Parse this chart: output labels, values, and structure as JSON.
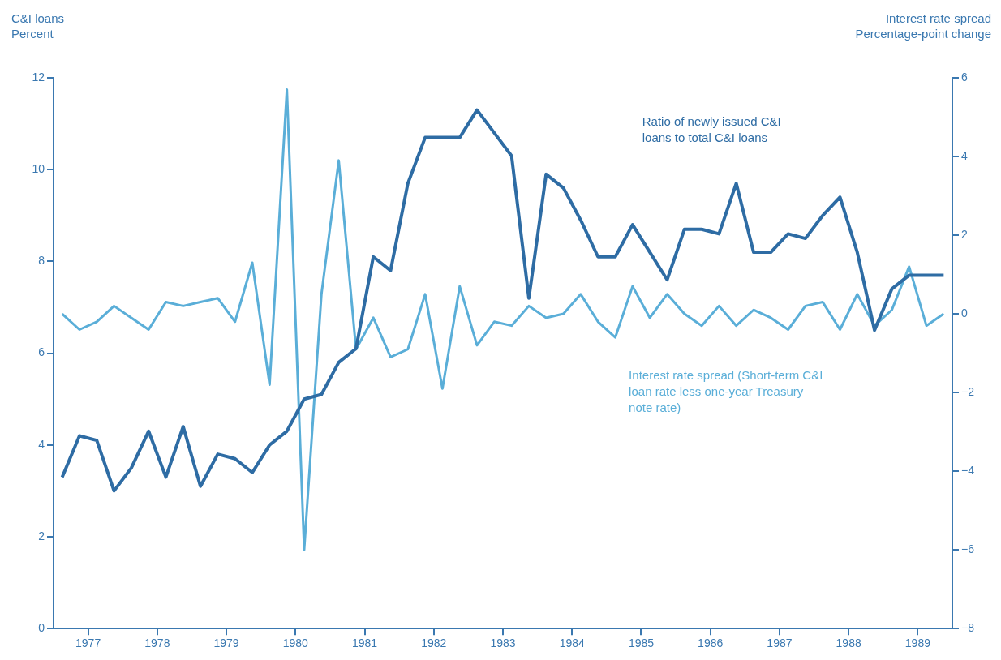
{
  "chart_data": {
    "type": "line",
    "ylabel": "C&I loans\nPercent",
    "y2label": "Interest rate spread\nPercentage-point change",
    "x": [
      1977.125,
      1977.375,
      1977.625,
      1977.875,
      1978.125,
      1978.375,
      1978.625,
      1978.875,
      1979.125,
      1979.375,
      1979.625,
      1979.875,
      1980.125,
      1980.375,
      1980.625,
      1980.875,
      1981.125,
      1981.375,
      1981.625,
      1981.875,
      1982.125,
      1982.375,
      1982.625,
      1982.875,
      1983.125,
      1983.375,
      1983.625,
      1983.875,
      1984.125,
      1984.375,
      1984.625,
      1984.875,
      1985.125,
      1985.375,
      1985.625,
      1985.875,
      1986.125,
      1986.375,
      1986.625,
      1986.875,
      1987.125,
      1987.375,
      1987.625,
      1987.875,
      1988.125,
      1988.375,
      1988.625,
      1988.875,
      1989.125,
      1989.375,
      1989.625,
      1989.875
    ],
    "series": [
      {
        "name": "Ratio of newly issued C&I loans to total C&I loans",
        "color": "#2e6ca4",
        "values": [
          3.3,
          4.2,
          4.1,
          3.0,
          3.5,
          4.3,
          3.3,
          4.4,
          3.1,
          3.8,
          3.7,
          3.4,
          4.0,
          4.3,
          5.0,
          5.1,
          5.8,
          6.1,
          8.1,
          7.8,
          9.7,
          10.7,
          10.7,
          10.7,
          11.3,
          10.8,
          10.3,
          7.2,
          9.9,
          9.6,
          8.9,
          8.1,
          8.1,
          8.8,
          8.2,
          7.6,
          8.7,
          8.7,
          8.6,
          9.7,
          8.2,
          8.2,
          8.6,
          8.5,
          9.0,
          9.4,
          8.2,
          6.5,
          7.4,
          7.7,
          7.7,
          7.7
        ]
      },
      {
        "name": "Interest rate spread (Short-term C&I loan rate less one-year Treasury note rate)",
        "color": "#5aaed8",
        "axis": "y2",
        "values": [
          0.0,
          -0.4,
          -0.2,
          0.2,
          -0.1,
          -0.4,
          0.3,
          0.2,
          0.3,
          0.4,
          -0.2,
          1.3,
          -1.8,
          5.7,
          -6.0,
          0.5,
          3.9,
          -0.9,
          -0.1,
          -1.1,
          -0.9,
          0.5,
          -1.9,
          0.7,
          -0.8,
          -0.2,
          -0.3,
          0.2,
          -0.1,
          0.0,
          0.5,
          -0.2,
          -0.6,
          0.7,
          -0.1,
          0.5,
          0.0,
          -0.3,
          0.2,
          -0.3,
          0.1,
          -0.1,
          -0.4,
          0.2,
          0.3,
          -0.4,
          0.5,
          -0.3,
          0.1,
          1.2,
          -0.3,
          0.0
        ]
      }
    ],
    "xlim": [
      1977,
      1990
    ],
    "xticks": [
      {
        "value": 1977.5,
        "label": "1977"
      },
      {
        "value": 1978.5,
        "label": "1978"
      },
      {
        "value": 1979.5,
        "label": "1979"
      },
      {
        "value": 1980.5,
        "label": "1980"
      },
      {
        "value": 1981.5,
        "label": "1981"
      },
      {
        "value": 1982.5,
        "label": "1982"
      },
      {
        "value": 1983.5,
        "label": "1983"
      },
      {
        "value": 1984.5,
        "label": "1984"
      },
      {
        "value": 1985.5,
        "label": "1985"
      },
      {
        "value": 1986.5,
        "label": "1986"
      },
      {
        "value": 1987.5,
        "label": "1987"
      },
      {
        "value": 1988.5,
        "label": "1988"
      },
      {
        "value": 1989.5,
        "label": "1989"
      }
    ],
    "ylim": [
      0,
      12
    ],
    "yticks": [
      0,
      2,
      4,
      6,
      8,
      10,
      12
    ],
    "y2lim": [
      -8,
      6
    ],
    "y2ticks": [
      -8,
      -6,
      -4,
      -2,
      0,
      2,
      4,
      6
    ],
    "grid": false,
    "legend": false,
    "marker": "none",
    "line_style": "solid"
  }
}
